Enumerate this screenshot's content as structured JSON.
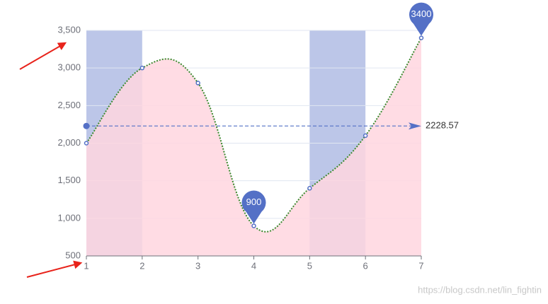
{
  "chart_data": {
    "type": "line",
    "x": [
      1,
      2,
      3,
      4,
      5,
      6,
      7
    ],
    "values": [
      2000,
      3000,
      2800,
      900,
      1400,
      2100,
      3400
    ],
    "color": "#3b8a2e",
    "point_color": "#5470c6",
    "area_color": "#ffd6df",
    "xlim": [
      1,
      7
    ],
    "xticks": [
      1,
      2,
      3,
      4,
      5,
      6,
      7
    ],
    "ylim": [
      500,
      3500
    ],
    "yticks": [
      500,
      {
        "value": 1000,
        "label": "1,000"
      },
      {
        "value": 1500,
        "label": "1,500"
      },
      {
        "value": 2000,
        "label": "2,000"
      },
      {
        "value": 2500,
        "label": "2,500"
      },
      {
        "value": 3000,
        "label": "3,000"
      },
      {
        "value": 3500,
        "label": "3,500"
      }
    ],
    "grid": true,
    "mark_areas": [
      [
        1,
        2
      ],
      [
        5,
        6
      ]
    ],
    "mark_area_color": "#bcc6e8",
    "mark_points": [
      {
        "x": 7,
        "value": 3400
      },
      {
        "x": 4,
        "value": 900
      }
    ],
    "mark_line": 2228.57,
    "watermark": "https://blog.csdn.net/lin_fightin"
  }
}
